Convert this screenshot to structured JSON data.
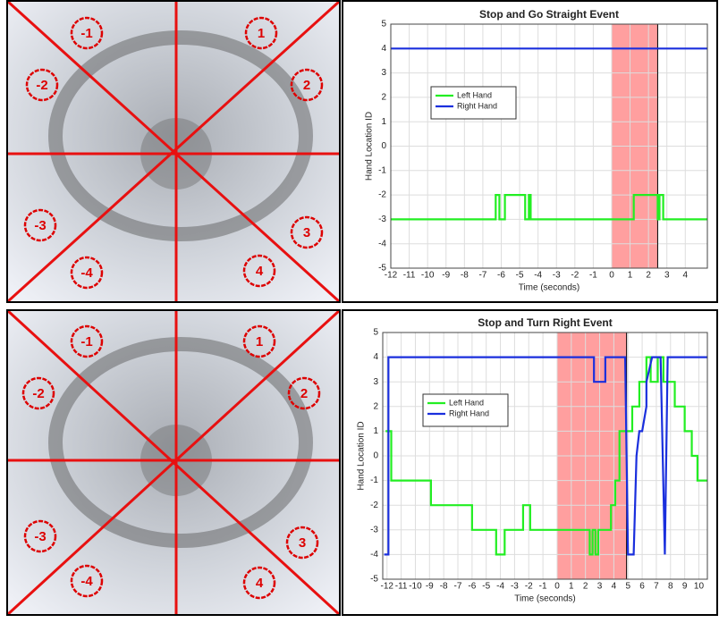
{
  "chart_data": [
    {
      "type": "line",
      "title": "Stop and Go Straight Event",
      "xlabel": "Time (seconds)",
      "ylabel": "Hand Location ID",
      "xlim": [
        -12,
        5.2
      ],
      "xticks": [
        -12,
        -11,
        -10,
        -9,
        -8,
        -7,
        -6,
        -5,
        -4,
        -3,
        -2,
        -1,
        0,
        1,
        2,
        3,
        4
      ],
      "ylim": [
        -5,
        5
      ],
      "yticks": [
        -5,
        -4,
        -3,
        -2,
        -1,
        0,
        1,
        2,
        3,
        4,
        5
      ],
      "grid": true,
      "legend": "upper left",
      "highlight": {
        "x": [
          0,
          2.5
        ],
        "color": "#ff9f9f"
      },
      "series": [
        {
          "name": "Left Hand",
          "color": "#22ee22",
          "x": [
            -12,
            -6.3,
            -6.3,
            -6.1,
            -6.1,
            -5.8,
            -5.8,
            -4.7,
            -4.7,
            -4.5,
            -4.5,
            -4.4,
            -4.4,
            1.2,
            1.2,
            2.5,
            2.5,
            2.6,
            2.6,
            2.8,
            2.8,
            5.2
          ],
          "values": [
            -3,
            -3,
            -2,
            -2,
            -3,
            -3,
            -2,
            -2,
            -3,
            -3,
            -2,
            -2,
            -3,
            -3,
            -2,
            -2,
            -3,
            -3,
            -2,
            -2,
            -3,
            -3
          ]
        },
        {
          "name": "Right Hand",
          "color": "#1a2fdd",
          "x": [
            -12,
            5.2
          ],
          "values": [
            4,
            4
          ]
        }
      ]
    },
    {
      "type": "line",
      "title": "Stop and Turn Right Event",
      "xlabel": "Time (seconds)",
      "ylabel": "Hand Location ID",
      "xlim": [
        -12.3,
        10.6
      ],
      "xticks": [
        -12,
        -11,
        -10,
        -9,
        -8,
        -7,
        -6,
        -5,
        -4,
        -3,
        -2,
        -1,
        0,
        1,
        2,
        3,
        4,
        5,
        6,
        7,
        8,
        9,
        10
      ],
      "ylim": [
        -5,
        5
      ],
      "yticks": [
        -5,
        -4,
        -3,
        -2,
        -1,
        0,
        1,
        2,
        3,
        4,
        5
      ],
      "grid": true,
      "legend": "upper left",
      "highlight": {
        "x": [
          0,
          4.9
        ],
        "color": "#ff9f9f"
      },
      "series": [
        {
          "name": "Left Hand",
          "color": "#22ee22",
          "x": [
            -12.1,
            -11.7,
            -11.7,
            -8.9,
            -8.9,
            -6,
            -6,
            -4.3,
            -4.3,
            -3.7,
            -3.7,
            -2.4,
            -2.4,
            -1.9,
            -1.9,
            2.3,
            2.3,
            2.5,
            2.5,
            2.7,
            2.7,
            2.9,
            2.9,
            3.8,
            3.8,
            4.1,
            4.1,
            4.4,
            4.4,
            5.3,
            5.3,
            5.8,
            5.8,
            6.3,
            6.3,
            6.6,
            6.6,
            7.1,
            7.1,
            7.5,
            7.5,
            8.3,
            8.3,
            9,
            9,
            9.5,
            9.5,
            9.9,
            9.9,
            10.6
          ],
          "values": [
            1,
            1,
            -1,
            -1,
            -2,
            -2,
            -3,
            -3,
            -4,
            -4,
            -3,
            -3,
            -2,
            -2,
            -3,
            -3,
            -4,
            -4,
            -3,
            -3,
            -4,
            -4,
            -3,
            -3,
            -2,
            -2,
            -1,
            -1,
            1,
            1,
            2,
            2,
            3,
            3,
            4,
            4,
            3,
            3,
            4,
            4,
            3,
            3,
            2,
            2,
            1,
            1,
            0,
            0,
            -1,
            -1
          ]
        },
        {
          "name": "Right Hand",
          "color": "#1a2fdd",
          "x": [
            -12.2,
            -11.9,
            -11.9,
            2.6,
            2.6,
            3.4,
            3.4,
            3.7,
            3.7,
            4.8,
            5.0,
            5.4,
            5.6,
            5.8,
            6.0,
            6.3,
            6.3,
            6.7,
            6.9,
            7.3,
            7.6,
            7.8,
            7.8,
            10.6
          ],
          "values": [
            -4,
            -4,
            4,
            4,
            3,
            3,
            4,
            4,
            4,
            4,
            -4,
            -4,
            0,
            1,
            1,
            2,
            3,
            4,
            4,
            4,
            -4,
            4,
            4,
            4
          ]
        }
      ]
    }
  ],
  "zone_labels": [
    [
      "-1",
      "1",
      "-2",
      "2",
      "-3",
      "3",
      "-4",
      "4"
    ],
    [
      "-1",
      "1",
      "-2",
      "2",
      "-3",
      "3",
      "-4",
      "4"
    ]
  ]
}
